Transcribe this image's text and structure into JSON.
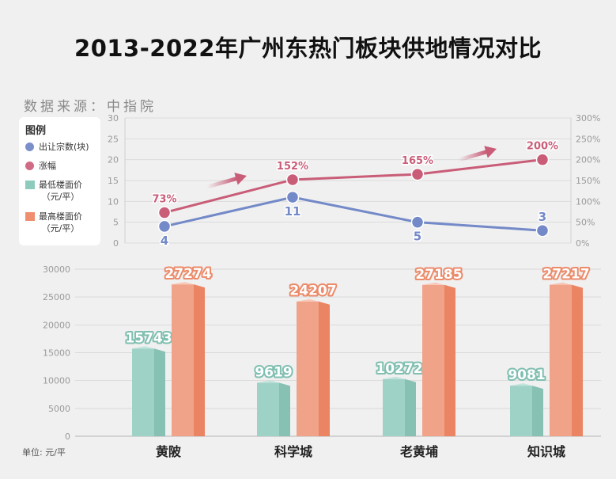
{
  "title": "2013-2022年广州东热门板块供地情况对比",
  "source": "数据来源：中指院",
  "unit": "单位: 元/平",
  "legend": {
    "title": "图例",
    "items": [
      {
        "label": "出让宗数(块)",
        "color": "#7b8fcb",
        "shape": "circle"
      },
      {
        "label": "涨幅",
        "color": "#d06a85",
        "shape": "circle"
      },
      {
        "label": "最低楼面价\n（元/平）",
        "color": "#8fcbbd",
        "shape": "square"
      },
      {
        "label": "最高楼面价\n（元/平）",
        "color": "#ef8f6f",
        "shape": "square"
      }
    ]
  },
  "colors": {
    "count_line": "#7389c8",
    "growth_line": "#c95d78",
    "min_bar": "#9fd2c7",
    "max_bar": "#f1a38a"
  },
  "chart_data": [
    {
      "type": "line",
      "categories": [
        "黄陂",
        "科学城",
        "老黄埔",
        "知识城"
      ],
      "series": [
        {
          "name": "出让宗数(块)",
          "values": [
            4,
            11,
            5,
            3
          ],
          "labels": [
            "4",
            "11",
            "5",
            "3"
          ],
          "axis": "left"
        },
        {
          "name": "涨幅",
          "values": [
            73,
            152,
            165,
            200
          ],
          "labels": [
            "73%",
            "152%",
            "165%",
            "200%"
          ],
          "axis": "right"
        }
      ],
      "y_left": {
        "min": 0,
        "max": 30,
        "ticks": [
          "0",
          "5",
          "10",
          "15",
          "20",
          "25",
          "30"
        ]
      },
      "y_right": {
        "min": 0,
        "max": 300,
        "ticks": [
          "0%",
          "50%",
          "100%",
          "150%",
          "200%",
          "250%",
          "300%"
        ]
      },
      "grid": true
    },
    {
      "type": "bar",
      "categories": [
        "黄陂",
        "科学城",
        "老黄埔",
        "知识城"
      ],
      "series": [
        {
          "name": "最低楼面价（元/平）",
          "values": [
            15743,
            9619,
            10272,
            9081
          ]
        },
        {
          "name": "最高楼面价（元/平）",
          "values": [
            27274,
            24207,
            27185,
            27217
          ]
        }
      ],
      "y": {
        "min": 0,
        "max": 30000,
        "ticks": [
          "0",
          "5000",
          "10000",
          "15000",
          "20000",
          "25000",
          "30000"
        ]
      },
      "grid": true
    }
  ]
}
